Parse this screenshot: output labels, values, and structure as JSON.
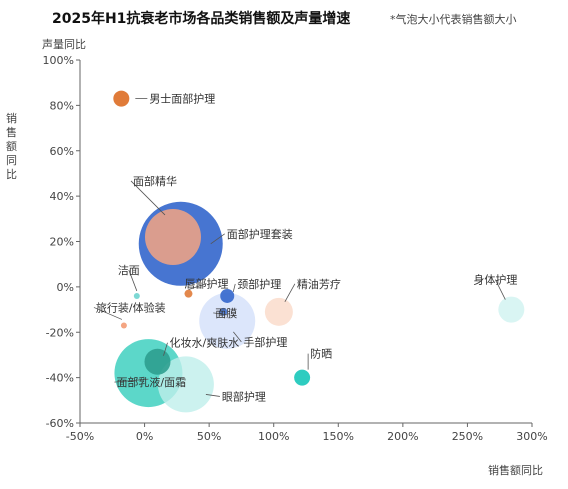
{
  "title": "2025年H1抗衰老市场各品类销售额及声量增速",
  "note": "*气泡大小代表销售额大小",
  "chart_data": {
    "type": "scatter",
    "title": "2025年H1抗衰老市场各品类销售额及声量增速",
    "xlabel": "销售额同比",
    "ylabel": "声量同比",
    "side_label": "销售额同比",
    "xlim": [
      -0.5,
      3.0
    ],
    "ylim": [
      -0.6,
      1.0
    ],
    "x_ticks": [
      "-50%",
      "0%",
      "50%",
      "100%",
      "150%",
      "200%",
      "250%",
      "300%"
    ],
    "y_ticks": [
      "-60%",
      "-40%",
      "-20%",
      "0%",
      "20%",
      "40%",
      "60%",
      "80%",
      "100%"
    ],
    "points": [
      {
        "name": "男士面部护理",
        "x": -0.18,
        "y": 0.83,
        "size": 8,
        "color": "#E07B39",
        "opacity": 1.0
      },
      {
        "name": "面部精华",
        "x": 0.22,
        "y": 0.22,
        "size": 28,
        "color": "#F4A582",
        "opacity": 0.85
      },
      {
        "name": "面部护理套装",
        "x": 0.28,
        "y": 0.19,
        "size": 42,
        "color": "#3366CC",
        "opacity": 0.9
      },
      {
        "name": "洁面",
        "x": -0.06,
        "y": -0.04,
        "size": 3,
        "color": "#7DD8D4",
        "opacity": 1.0
      },
      {
        "name": "唇部护理",
        "x": 0.34,
        "y": -0.03,
        "size": 4,
        "color": "#E07B39",
        "opacity": 0.9
      },
      {
        "name": "颈部护理",
        "x": 0.64,
        "y": -0.04,
        "size": 7,
        "color": "#3366CC",
        "opacity": 0.9
      },
      {
        "name": "精油芳疗",
        "x": 1.04,
        "y": -0.11,
        "size": 14,
        "color": "#FAD9C8",
        "opacity": 0.8
      },
      {
        "name": "身体护理",
        "x": 2.84,
        "y": -0.1,
        "size": 13,
        "color": "#CFF3F0",
        "opacity": 0.8
      },
      {
        "name": "旅行装/体验装",
        "x": -0.16,
        "y": -0.17,
        "size": 3,
        "color": "#F4A582",
        "opacity": 1.0
      },
      {
        "name": "面膜",
        "x": 0.64,
        "y": -0.15,
        "size": 28,
        "color": "#D6E2FA",
        "opacity": 0.85
      },
      {
        "name": "手部护理",
        "x": 0.61,
        "y": -0.11,
        "size": 4,
        "color": "#3366CC",
        "opacity": 0.8
      },
      {
        "name": "化妆水/爽肤水",
        "x": 0.1,
        "y": -0.33,
        "size": 13,
        "color": "#2E9E8F",
        "opacity": 0.9
      },
      {
        "name": "面部乳液/面霜",
        "x": 0.03,
        "y": -0.38,
        "size": 34,
        "color": "#3FD0C0",
        "opacity": 0.85
      },
      {
        "name": "眼部护理",
        "x": 0.32,
        "y": -0.43,
        "size": 28,
        "color": "#BFEFEB",
        "opacity": 0.8
      },
      {
        "name": "防晒",
        "x": 1.22,
        "y": -0.4,
        "size": 8,
        "color": "#2ECCC0",
        "opacity": 1.0
      }
    ]
  }
}
